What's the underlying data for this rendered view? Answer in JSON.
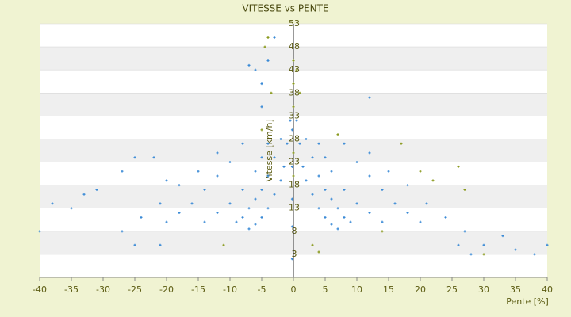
{
  "chart_data": {
    "type": "scatter",
    "title": "VITESSE vs PENTE",
    "x_label": "Pente [%]",
    "y_label": "Vitesse [km/h]",
    "xlim": [
      -40,
      40
    ],
    "xticks": [
      -40,
      -35,
      -30,
      -25,
      -20,
      -15,
      -10,
      -5,
      0,
      5,
      10,
      15,
      20,
      25,
      30,
      35,
      40
    ],
    "ylim": [
      -2,
      53
    ],
    "yticks": [
      3,
      8,
      13,
      18,
      23,
      28,
      33,
      38,
      43,
      48,
      53
    ],
    "grid": true,
    "series": [
      {
        "color": "#3a8ad6",
        "x": [
          0.5,
          1,
          1.5,
          2,
          3,
          4,
          5,
          6,
          7,
          2,
          3,
          4,
          5,
          6,
          7,
          8,
          9,
          4,
          5,
          6,
          8,
          10,
          12,
          14,
          8,
          10,
          12,
          14,
          16,
          18,
          20,
          12,
          15,
          18,
          21,
          24,
          27,
          12,
          26,
          30,
          35,
          40,
          33,
          28,
          38,
          -0.5,
          -1,
          -1.5,
          -2,
          -3,
          -4,
          -5,
          -6,
          -7,
          -2,
          -3,
          -4,
          -5,
          -6,
          -7,
          -8,
          -9,
          -4,
          -5,
          -6,
          -8,
          -10,
          -12,
          -14,
          -8,
          -10,
          -12,
          -14,
          -16,
          -18,
          -20,
          -12,
          -15,
          -18,
          -21,
          -24,
          -27,
          -4,
          -5,
          -3,
          -6,
          -7,
          -5,
          -38,
          -40,
          -35,
          -33,
          -31,
          -27,
          -25,
          -22,
          -20,
          -25,
          -21,
          -0.2,
          -0.2,
          -0.2,
          -0.2,
          -0.2
        ],
        "y": [
          32,
          27,
          22,
          19,
          16,
          13,
          11,
          9.5,
          8.5,
          28,
          24,
          20,
          17,
          15,
          13,
          11,
          10,
          27,
          24,
          21,
          17,
          14,
          12,
          10,
          27,
          23,
          20,
          17,
          14,
          12,
          10,
          25,
          21,
          18,
          14,
          11,
          8,
          37,
          5,
          5,
          4,
          5,
          7,
          3,
          3,
          32,
          27,
          22,
          19,
          16,
          13,
          11,
          9.5,
          8.5,
          28,
          24,
          20,
          17,
          15,
          13,
          11,
          10,
          27,
          24,
          21,
          17,
          14,
          12,
          10,
          27,
          23,
          20,
          17,
          14,
          12,
          10,
          25,
          21,
          18,
          14,
          11,
          8,
          45,
          40,
          50,
          43,
          44,
          35,
          14,
          8,
          13,
          16,
          17,
          21,
          24,
          24,
          19,
          5,
          5,
          30,
          22,
          15,
          9,
          2
        ]
      },
      {
        "color": "#8a9a1e",
        "x": [
          0,
          0,
          0,
          0,
          0.5,
          -4,
          -4.5,
          3,
          4,
          -11,
          17,
          27,
          20,
          22,
          26,
          30,
          -5,
          -3.5,
          1,
          0,
          14,
          7
        ],
        "y": [
          45,
          40,
          35,
          20,
          43,
          50,
          48,
          5,
          3.5,
          5,
          27,
          17,
          21,
          19,
          22,
          3,
          30,
          38,
          38,
          25,
          8,
          29
        ]
      }
    ]
  }
}
